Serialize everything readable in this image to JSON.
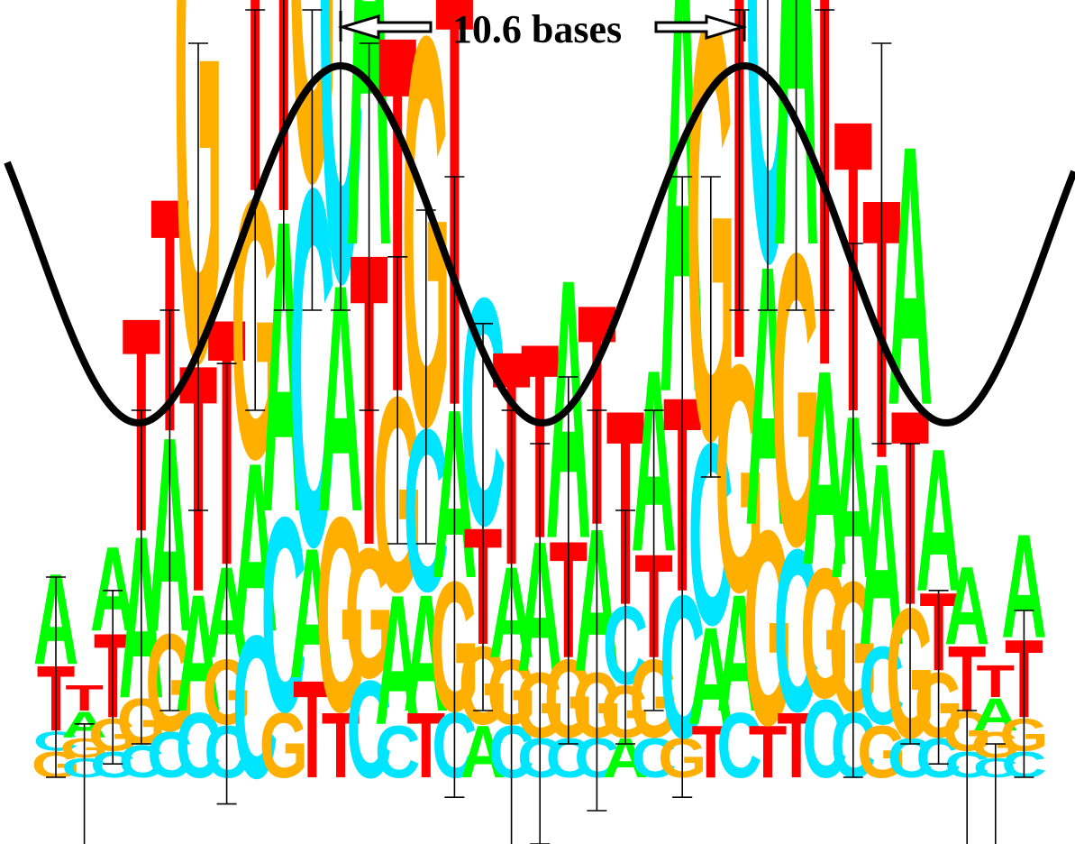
{
  "annotation": {
    "period_label": "10.6 bases"
  },
  "colors": {
    "A": "#00ff00",
    "C": "#00e5ff",
    "G": "#ffaf00",
    "T": "#ff0000",
    "sine": "#000000",
    "errorbar": "#000000"
  },
  "alphabet": [
    "A",
    "C",
    "G",
    "T"
  ],
  "positions": [
    {
      "stack": [
        [
          "G",
          0.04
        ],
        [
          "C",
          0.03
        ],
        [
          "T",
          0.1
        ],
        [
          "A",
          0.14
        ]
      ]
    },
    {
      "stack": [
        [
          "C",
          0.03
        ],
        [
          "G",
          0.03
        ],
        [
          "A",
          0.04
        ],
        [
          "T",
          0.04
        ]
      ]
    },
    {
      "stack": [
        [
          "C",
          0.04
        ],
        [
          "G",
          0.05
        ],
        [
          "T",
          0.13
        ],
        [
          "A",
          0.13
        ]
      ]
    },
    {
      "stack": [
        [
          "C",
          0.05
        ],
        [
          "G",
          0.07
        ],
        [
          "A",
          0.25
        ],
        [
          "T",
          0.33
        ]
      ]
    },
    {
      "stack": [
        [
          "C",
          0.07
        ],
        [
          "G",
          0.15
        ],
        [
          "A",
          0.3
        ],
        [
          "T",
          0.36
        ]
      ]
    },
    {
      "stack": [
        [
          "C",
          0.1
        ],
        [
          "A",
          0.18
        ],
        [
          "T",
          0.35
        ],
        [
          "G",
          0.88
        ]
      ]
    },
    {
      "stack": [
        [
          "C",
          0.08
        ],
        [
          "G",
          0.1
        ],
        [
          "A",
          0.14
        ],
        [
          "T",
          0.38
        ]
      ]
    },
    {
      "stack": [
        [
          "C",
          0.22
        ],
        [
          "A",
          0.26
        ],
        [
          "G",
          0.4
        ],
        [
          "T",
          0.85
        ]
      ]
    },
    {
      "stack": [
        [
          "G",
          0.1
        ],
        [
          "C",
          0.3
        ],
        [
          "A",
          0.45
        ],
        [
          "T",
          0.98
        ]
      ]
    },
    {
      "stack": [
        [
          "T",
          0.15
        ],
        [
          "A",
          0.2
        ],
        [
          "C",
          0.55
        ],
        [
          "G",
          0.9
        ]
      ]
    },
    {
      "stack": [
        [
          "T",
          0.1
        ],
        [
          "G",
          0.3
        ],
        [
          "A",
          0.35
        ],
        [
          "C",
          0.95
        ]
      ]
    },
    {
      "stack": [
        [
          "C",
          0.15
        ],
        [
          "G",
          0.2
        ],
        [
          "T",
          0.45
        ],
        [
          "A",
          0.92
        ]
      ]
    },
    {
      "stack": [
        [
          "C",
          0.08
        ],
        [
          "A",
          0.2
        ],
        [
          "G",
          0.3
        ],
        [
          "T",
          0.55
        ]
      ]
    },
    {
      "stack": [
        [
          "T",
          0.1
        ],
        [
          "A",
          0.18
        ],
        [
          "C",
          0.25
        ],
        [
          "G",
          0.6
        ]
      ]
    },
    {
      "stack": [
        [
          "C",
          0.1
        ],
        [
          "G",
          0.2
        ],
        [
          "A",
          0.26
        ],
        [
          "T",
          0.7
        ]
      ]
    },
    {
      "stack": [
        [
          "A",
          0.08
        ],
        [
          "G",
          0.12
        ],
        [
          "T",
          0.18
        ],
        [
          "C",
          0.35
        ]
      ]
    },
    {
      "stack": [
        [
          "C",
          0.08
        ],
        [
          "G",
          0.1
        ],
        [
          "A",
          0.14
        ],
        [
          "T",
          0.33
        ]
      ]
    },
    {
      "stack": [
        [
          "C",
          0.06
        ],
        [
          "G",
          0.1
        ],
        [
          "A",
          0.2
        ],
        [
          "T",
          0.3
        ]
      ]
    },
    {
      "stack": [
        [
          "C",
          0.06
        ],
        [
          "G",
          0.12
        ],
        [
          "T",
          0.18
        ],
        [
          "A",
          0.4
        ]
      ]
    },
    {
      "stack": [
        [
          "C",
          0.06
        ],
        [
          "G",
          0.1
        ],
        [
          "A",
          0.22
        ],
        [
          "T",
          0.34
        ]
      ]
    },
    {
      "stack": [
        [
          "A",
          0.06
        ],
        [
          "G",
          0.08
        ],
        [
          "C",
          0.12
        ],
        [
          "T",
          0.3
        ]
      ]
    },
    {
      "stack": [
        [
          "C",
          0.06
        ],
        [
          "G",
          0.12
        ],
        [
          "T",
          0.16
        ],
        [
          "A",
          0.28
        ]
      ]
    },
    {
      "stack": [
        [
          "G",
          0.06
        ],
        [
          "C",
          0.22
        ],
        [
          "T",
          0.3
        ],
        [
          "A",
          0.7
        ]
      ]
    },
    {
      "stack": [
        [
          "T",
          0.08
        ],
        [
          "A",
          0.15
        ],
        [
          "C",
          0.28
        ],
        [
          "G",
          0.65
        ]
      ]
    },
    {
      "stack": [
        [
          "C",
          0.1
        ],
        [
          "A",
          0.18
        ],
        [
          "G",
          0.35
        ],
        [
          "T",
          0.85
        ]
      ]
    },
    {
      "stack": [
        [
          "T",
          0.08
        ],
        [
          "G",
          0.3
        ],
        [
          "A",
          0.4
        ],
        [
          "C",
          0.9
        ]
      ]
    },
    {
      "stack": [
        [
          "T",
          0.1
        ],
        [
          "C",
          0.25
        ],
        [
          "G",
          0.45
        ],
        [
          "A",
          0.95
        ]
      ]
    },
    {
      "stack": [
        [
          "C",
          0.12
        ],
        [
          "G",
          0.2
        ],
        [
          "A",
          0.3
        ],
        [
          "T",
          0.92
        ]
      ]
    },
    {
      "stack": [
        [
          "C",
          0.1
        ],
        [
          "G",
          0.2
        ],
        [
          "A",
          0.25
        ],
        [
          "T",
          0.45
        ]
      ]
    },
    {
      "stack": [
        [
          "G",
          0.08
        ],
        [
          "C",
          0.12
        ],
        [
          "A",
          0.28
        ],
        [
          "T",
          0.4
        ]
      ]
    },
    {
      "stack": [
        [
          "C",
          0.06
        ],
        [
          "G",
          0.2
        ],
        [
          "T",
          0.3
        ],
        [
          "A",
          0.4
        ]
      ]
    },
    {
      "stack": [
        [
          "C",
          0.06
        ],
        [
          "G",
          0.1
        ],
        [
          "T",
          0.12
        ],
        [
          "A",
          0.22
        ]
      ]
    },
    {
      "stack": [
        [
          "C",
          0.04
        ],
        [
          "G",
          0.06
        ],
        [
          "T",
          0.1
        ],
        [
          "A",
          0.12
        ]
      ]
    },
    {
      "stack": [
        [
          "C",
          0.03
        ],
        [
          "G",
          0.04
        ],
        [
          "A",
          0.05
        ],
        [
          "T",
          0.05
        ]
      ]
    },
    {
      "stack": [
        [
          "C",
          0.04
        ],
        [
          "G",
          0.05
        ],
        [
          "T",
          0.12
        ],
        [
          "A",
          0.16
        ]
      ]
    }
  ],
  "error_bars": [
    {
      "lo": 0.0,
      "hi": 0.3
    },
    {
      "lo": -0.12,
      "hi": 0.08
    },
    {
      "lo": 0.02,
      "hi": 0.28
    },
    {
      "lo": 0.05,
      "hi": 0.55
    },
    {
      "lo": 0.1,
      "hi": 0.7
    },
    {
      "lo": 0.4,
      "hi": 1.1
    },
    {
      "lo": -0.04,
      "hi": 0.62
    },
    {
      "lo": 0.55,
      "hi": 1.15
    },
    {
      "lo": 0.7,
      "hi": 1.2
    },
    {
      "lo": 0.7,
      "hi": 1.15
    },
    {
      "lo": 0.7,
      "hi": 1.18
    },
    {
      "lo": 0.55,
      "hi": 1.1
    },
    {
      "lo": 0.35,
      "hi": 0.78
    },
    {
      "lo": 0.35,
      "hi": 0.85
    },
    {
      "lo": -0.03,
      "hi": 0.9
    },
    {
      "lo": 0.1,
      "hi": 0.68
    },
    {
      "lo": -0.12,
      "hi": 0.55
    },
    {
      "lo": -0.1,
      "hi": 0.5
    },
    {
      "lo": 0.05,
      "hi": 0.6
    },
    {
      "lo": -0.05,
      "hi": 0.55
    },
    {
      "lo": 0.05,
      "hi": 0.4
    },
    {
      "lo": 0.1,
      "hi": 0.55
    },
    {
      "lo": -0.03,
      "hi": 0.9
    },
    {
      "lo": 0.45,
      "hi": 0.9
    },
    {
      "lo": 0.7,
      "hi": 1.15
    },
    {
      "lo": 0.7,
      "hi": 1.18
    },
    {
      "lo": 0.7,
      "hi": 1.18
    },
    {
      "lo": 0.7,
      "hi": 1.15
    },
    {
      "lo": 0.0,
      "hi": 0.8
    },
    {
      "lo": 0.5,
      "hi": 1.1
    },
    {
      "lo": 0.05,
      "hi": 0.5
    },
    {
      "lo": 0.02,
      "hi": 0.28
    },
    {
      "lo": -0.12,
      "hi": 0.1
    },
    {
      "lo": -0.12,
      "hi": 0.05
    },
    {
      "lo": 0.0,
      "hi": 0.25
    }
  ]
}
